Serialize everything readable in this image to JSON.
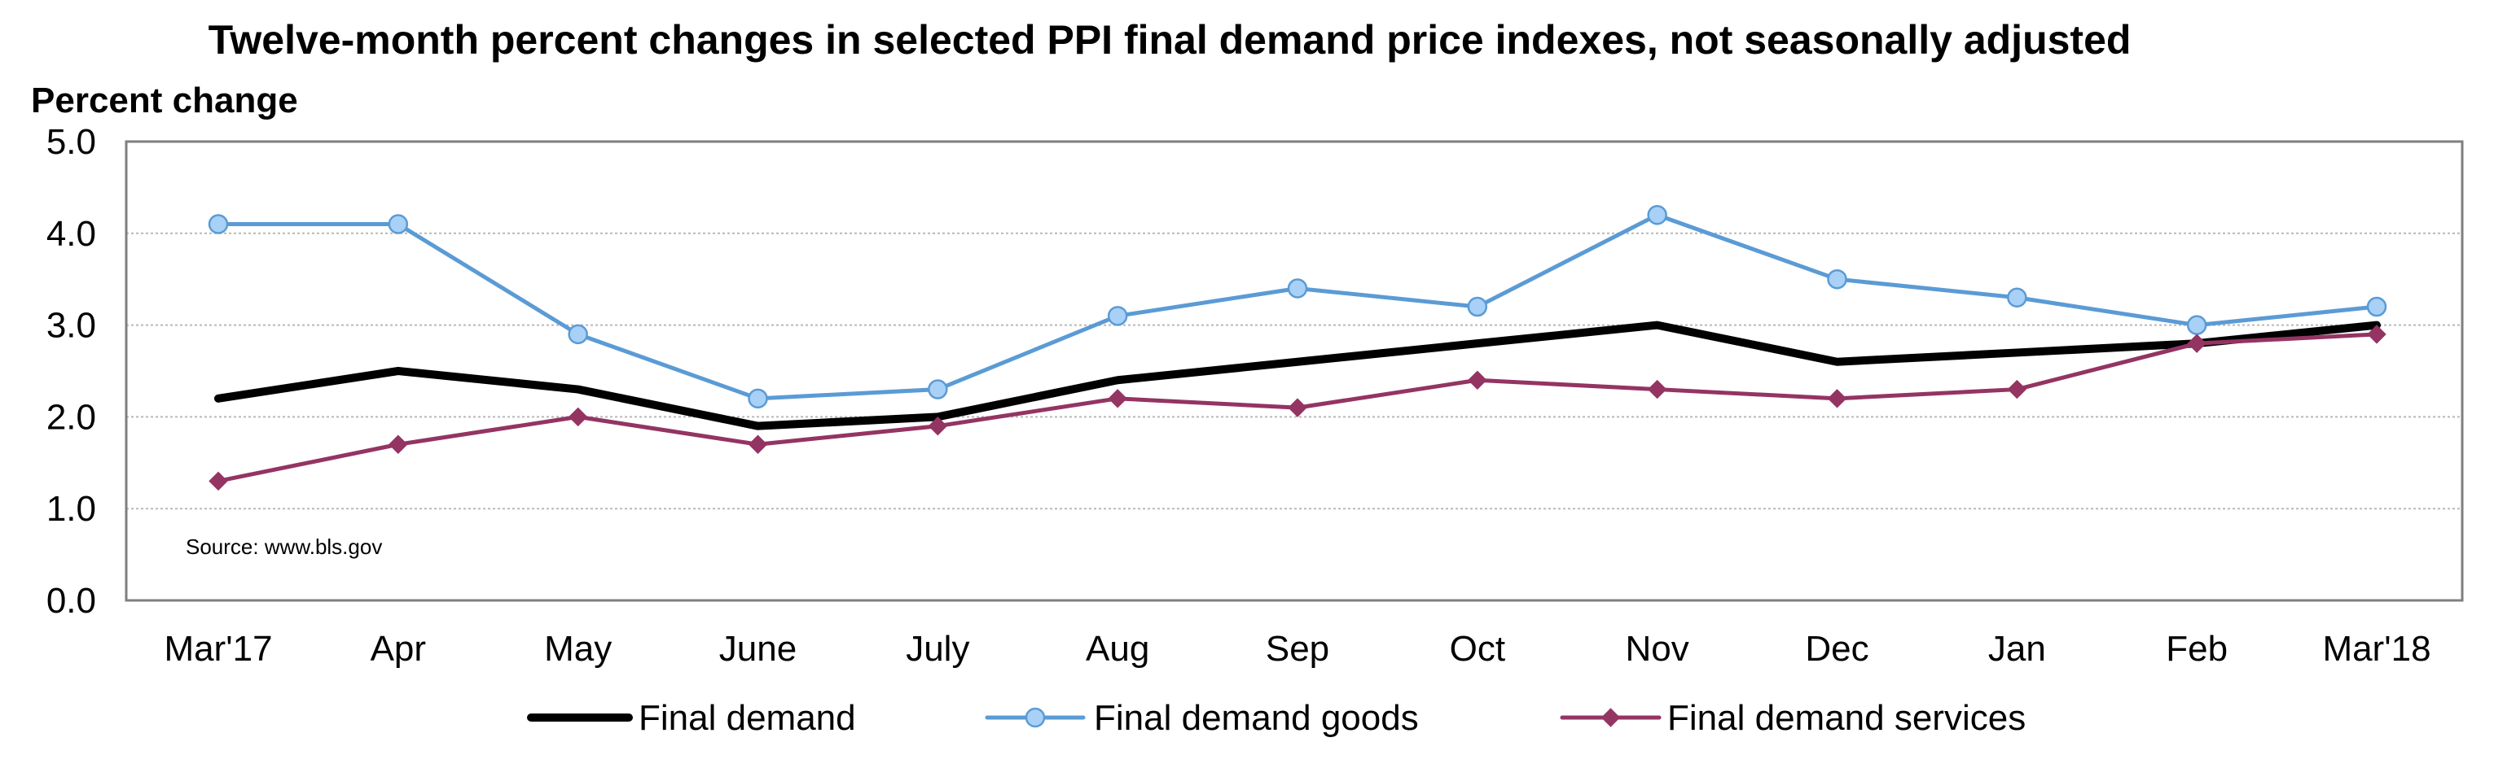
{
  "chart_data": {
    "type": "line",
    "title": "Twelve-month percent changes in selected PPI final demand price indexes, not seasonally adjusted",
    "ylabel": "Percent change",
    "xlabel": "",
    "categories": [
      "Mar'17",
      "Apr",
      "May",
      "June",
      "July",
      "Aug",
      "Sep",
      "Oct",
      "Nov",
      "Dec",
      "Jan",
      "Feb",
      "Mar'18"
    ],
    "ylim": [
      0,
      5
    ],
    "yticks": [
      "0.0",
      "1.0",
      "2.0",
      "3.0",
      "4.0",
      "5.0"
    ],
    "grid": "horizontal",
    "legend_position": "bottom",
    "source": "Source: www.bls.gov",
    "series": [
      {
        "name": "Final demand",
        "color": "#000000",
        "marker": "none",
        "values": [
          2.2,
          2.5,
          2.3,
          1.9,
          2.0,
          2.4,
          2.6,
          2.8,
          3.0,
          2.6,
          2.7,
          2.8,
          3.0
        ]
      },
      {
        "name": "Final demand goods",
        "color": "#5B9BD5",
        "marker_fill": "#A9D1F7",
        "marker": "circle",
        "values": [
          4.1,
          4.1,
          2.9,
          2.2,
          2.3,
          3.1,
          3.4,
          3.2,
          4.2,
          3.5,
          3.3,
          3.0,
          3.2
        ]
      },
      {
        "name": "Final demand services",
        "color": "#943463",
        "marker": "diamond",
        "values": [
          1.3,
          1.7,
          2.0,
          1.7,
          1.9,
          2.2,
          2.1,
          2.4,
          2.3,
          2.2,
          2.3,
          2.8,
          2.9
        ]
      }
    ]
  }
}
